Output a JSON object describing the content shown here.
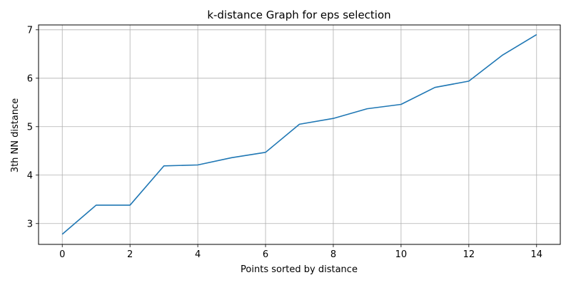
{
  "chart_data": {
    "type": "line",
    "title": "k-distance Graph for eps selection",
    "xlabel": "Points sorted by distance",
    "ylabel": "3th NN distance",
    "xlim": [
      -0.7,
      14.7
    ],
    "ylim": [
      2.57,
      7.1
    ],
    "xticks": [
      0,
      2,
      4,
      6,
      8,
      10,
      12,
      14
    ],
    "yticks": [
      3,
      4,
      5,
      6,
      7
    ],
    "grid": true,
    "series": [
      {
        "color": "#1f77b4",
        "x": [
          0,
          1,
          2,
          3,
          4,
          5,
          6,
          7,
          8,
          9,
          10,
          11,
          12,
          13,
          14
        ],
        "y": [
          2.78,
          3.38,
          3.38,
          4.19,
          4.21,
          4.36,
          4.47,
          5.05,
          5.17,
          5.37,
          5.46,
          5.81,
          5.94,
          6.48,
          6.9
        ]
      }
    ]
  }
}
